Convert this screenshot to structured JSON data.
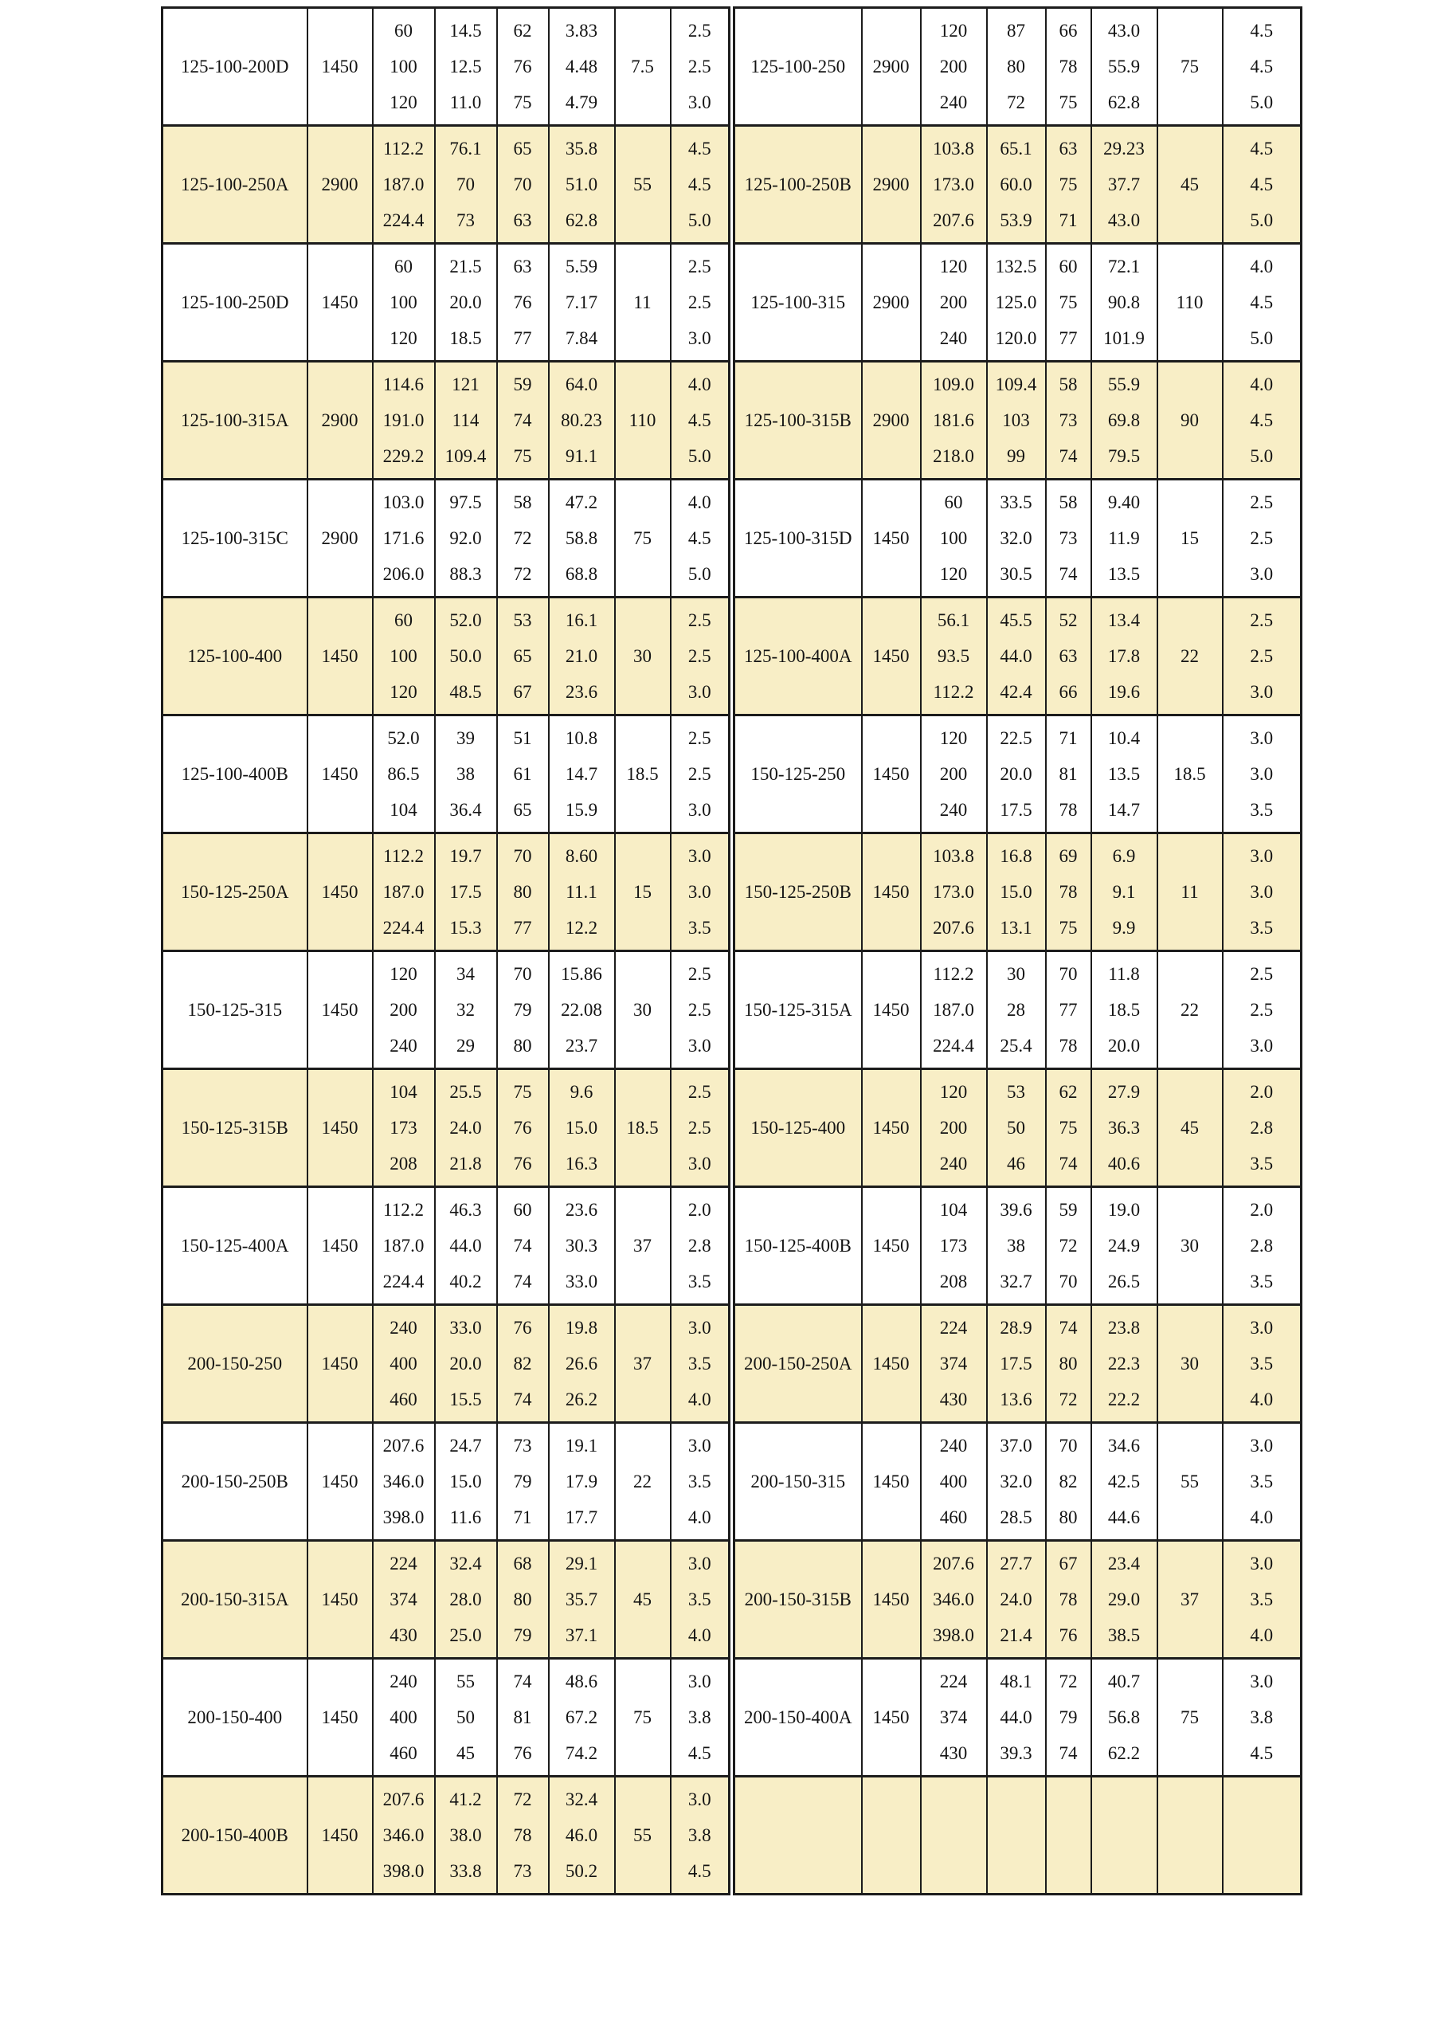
{
  "page": {
    "background": "#ffffff"
  },
  "table": {
    "shaded_row_bg": "#f8eec6",
    "border_color": "#1c1c1c",
    "text_color": "#141414",
    "left_rows": [
      {
        "model": "125-100-200D",
        "speed": "1450",
        "flow": [
          "60",
          "100",
          "120"
        ],
        "head": [
          "14.5",
          "12.5",
          "11.0"
        ],
        "eff": [
          "62",
          "76",
          "75"
        ],
        "power": [
          "3.83",
          "4.48",
          "4.79"
        ],
        "motor": "7.5",
        "npsh": [
          "2.5",
          "2.5",
          "3.0"
        ]
      },
      {
        "model": "125-100-250A",
        "speed": "2900",
        "flow": [
          "112.2",
          "187.0",
          "224.4"
        ],
        "head": [
          "76.1",
          "70",
          "73"
        ],
        "eff": [
          "65",
          "70",
          "63"
        ],
        "power": [
          "35.8",
          "51.0",
          "62.8"
        ],
        "motor": "55",
        "npsh": [
          "4.5",
          "4.5",
          "5.0"
        ]
      },
      {
        "model": "125-100-250D",
        "speed": "1450",
        "flow": [
          "60",
          "100",
          "120"
        ],
        "head": [
          "21.5",
          "20.0",
          "18.5"
        ],
        "eff": [
          "63",
          "76",
          "77"
        ],
        "power": [
          "5.59",
          "7.17",
          "7.84"
        ],
        "motor": "11",
        "npsh": [
          "2.5",
          "2.5",
          "3.0"
        ]
      },
      {
        "model": "125-100-315A",
        "speed": "2900",
        "flow": [
          "114.6",
          "191.0",
          "229.2"
        ],
        "head": [
          "121",
          "114",
          "109.4"
        ],
        "eff": [
          "59",
          "74",
          "75"
        ],
        "power": [
          "64.0",
          "80.23",
          "91.1"
        ],
        "motor": "110",
        "npsh": [
          "4.0",
          "4.5",
          "5.0"
        ]
      },
      {
        "model": "125-100-315C",
        "speed": "2900",
        "flow": [
          "103.0",
          "171.6",
          "206.0"
        ],
        "head": [
          "97.5",
          "92.0",
          "88.3"
        ],
        "eff": [
          "58",
          "72",
          "72"
        ],
        "power": [
          "47.2",
          "58.8",
          "68.8"
        ],
        "motor": "75",
        "npsh": [
          "4.0",
          "4.5",
          "5.0"
        ]
      },
      {
        "model": "125-100-400",
        "speed": "1450",
        "flow": [
          "60",
          "100",
          "120"
        ],
        "head": [
          "52.0",
          "50.0",
          "48.5"
        ],
        "eff": [
          "53",
          "65",
          "67"
        ],
        "power": [
          "16.1",
          "21.0",
          "23.6"
        ],
        "motor": "30",
        "npsh": [
          "2.5",
          "2.5",
          "3.0"
        ]
      },
      {
        "model": "125-100-400B",
        "speed": "1450",
        "flow": [
          "52.0",
          "86.5",
          "104"
        ],
        "head": [
          "39",
          "38",
          "36.4"
        ],
        "eff": [
          "51",
          "61",
          "65"
        ],
        "power": [
          "10.8",
          "14.7",
          "15.9"
        ],
        "motor": "18.5",
        "npsh": [
          "2.5",
          "2.5",
          "3.0"
        ]
      },
      {
        "model": "150-125-250A",
        "speed": "1450",
        "flow": [
          "112.2",
          "187.0",
          "224.4"
        ],
        "head": [
          "19.7",
          "17.5",
          "15.3"
        ],
        "eff": [
          "70",
          "80",
          "77"
        ],
        "power": [
          "8.60",
          "11.1",
          "12.2"
        ],
        "motor": "15",
        "npsh": [
          "3.0",
          "3.0",
          "3.5"
        ]
      },
      {
        "model": "150-125-315",
        "speed": "1450",
        "flow": [
          "120",
          "200",
          "240"
        ],
        "head": [
          "34",
          "32",
          "29"
        ],
        "eff": [
          "70",
          "79",
          "80"
        ],
        "power": [
          "15.86",
          "22.08",
          "23.7"
        ],
        "motor": "30",
        "npsh": [
          "2.5",
          "2.5",
          "3.0"
        ]
      },
      {
        "model": "150-125-315B",
        "speed": "1450",
        "flow": [
          "104",
          "173",
          "208"
        ],
        "head": [
          "25.5",
          "24.0",
          "21.8"
        ],
        "eff": [
          "75",
          "76",
          "76"
        ],
        "power": [
          "9.6",
          "15.0",
          "16.3"
        ],
        "motor": "18.5",
        "npsh": [
          "2.5",
          "2.5",
          "3.0"
        ]
      },
      {
        "model": "150-125-400A",
        "speed": "1450",
        "flow": [
          "112.2",
          "187.0",
          "224.4"
        ],
        "head": [
          "46.3",
          "44.0",
          "40.2"
        ],
        "eff": [
          "60",
          "74",
          "74"
        ],
        "power": [
          "23.6",
          "30.3",
          "33.0"
        ],
        "motor": "37",
        "npsh": [
          "2.0",
          "2.8",
          "3.5"
        ]
      },
      {
        "model": "200-150-250",
        "speed": "1450",
        "flow": [
          "240",
          "400",
          "460"
        ],
        "head": [
          "33.0",
          "20.0",
          "15.5"
        ],
        "eff": [
          "76",
          "82",
          "74"
        ],
        "power": [
          "19.8",
          "26.6",
          "26.2"
        ],
        "motor": "37",
        "npsh": [
          "3.0",
          "3.5",
          "4.0"
        ]
      },
      {
        "model": "200-150-250B",
        "speed": "1450",
        "flow": [
          "207.6",
          "346.0",
          "398.0"
        ],
        "head": [
          "24.7",
          "15.0",
          "11.6"
        ],
        "eff": [
          "73",
          "79",
          "71"
        ],
        "power": [
          "19.1",
          "17.9",
          "17.7"
        ],
        "motor": "22",
        "npsh": [
          "3.0",
          "3.5",
          "4.0"
        ]
      },
      {
        "model": "200-150-315A",
        "speed": "1450",
        "flow": [
          "224",
          "374",
          "430"
        ],
        "head": [
          "32.4",
          "28.0",
          "25.0"
        ],
        "eff": [
          "68",
          "80",
          "79"
        ],
        "power": [
          "29.1",
          "35.7",
          "37.1"
        ],
        "motor": "45",
        "npsh": [
          "3.0",
          "3.5",
          "4.0"
        ]
      },
      {
        "model": "200-150-400",
        "speed": "1450",
        "flow": [
          "240",
          "400",
          "460"
        ],
        "head": [
          "55",
          "50",
          "45"
        ],
        "eff": [
          "74",
          "81",
          "76"
        ],
        "power": [
          "48.6",
          "67.2",
          "74.2"
        ],
        "motor": "75",
        "npsh": [
          "3.0",
          "3.8",
          "4.5"
        ]
      },
      {
        "model": "200-150-400B",
        "speed": "1450",
        "flow": [
          "207.6",
          "346.0",
          "398.0"
        ],
        "head": [
          "41.2",
          "38.0",
          "33.8"
        ],
        "eff": [
          "72",
          "78",
          "73"
        ],
        "power": [
          "32.4",
          "46.0",
          "50.2"
        ],
        "motor": "55",
        "npsh": [
          "3.0",
          "3.8",
          "4.5"
        ]
      }
    ],
    "right_rows": [
      {
        "model": "125-100-250",
        "speed": "2900",
        "flow": [
          "120",
          "200",
          "240"
        ],
        "head": [
          "87",
          "80",
          "72"
        ],
        "eff": [
          "66",
          "78",
          "75"
        ],
        "power": [
          "43.0",
          "55.9",
          "62.8"
        ],
        "motor": "75",
        "npsh": [
          "4.5",
          "4.5",
          "5.0"
        ]
      },
      {
        "model": "125-100-250B",
        "speed": "2900",
        "flow": [
          "103.8",
          "173.0",
          "207.6"
        ],
        "head": [
          "65.1",
          "60.0",
          "53.9"
        ],
        "eff": [
          "63",
          "75",
          "71"
        ],
        "power": [
          "29.23",
          "37.7",
          "43.0"
        ],
        "motor": "45",
        "npsh": [
          "4.5",
          "4.5",
          "5.0"
        ]
      },
      {
        "model": "125-100-315",
        "speed": "2900",
        "flow": [
          "120",
          "200",
          "240"
        ],
        "head": [
          "132.5",
          "125.0",
          "120.0"
        ],
        "eff": [
          "60",
          "75",
          "77"
        ],
        "power": [
          "72.1",
          "90.8",
          "101.9"
        ],
        "motor": "110",
        "npsh": [
          "4.0",
          "4.5",
          "5.0"
        ]
      },
      {
        "model": "125-100-315B",
        "speed": "2900",
        "flow": [
          "109.0",
          "181.6",
          "218.0"
        ],
        "head": [
          "109.4",
          "103",
          "99"
        ],
        "eff": [
          "58",
          "73",
          "74"
        ],
        "power": [
          "55.9",
          "69.8",
          "79.5"
        ],
        "motor": "90",
        "npsh": [
          "4.0",
          "4.5",
          "5.0"
        ]
      },
      {
        "model": "125-100-315D",
        "speed": "1450",
        "flow": [
          "60",
          "100",
          "120"
        ],
        "head": [
          "33.5",
          "32.0",
          "30.5"
        ],
        "eff": [
          "58",
          "73",
          "74"
        ],
        "power": [
          "9.40",
          "11.9",
          "13.5"
        ],
        "motor": "15",
        "npsh": [
          "2.5",
          "2.5",
          "3.0"
        ]
      },
      {
        "model": "125-100-400A",
        "speed": "1450",
        "flow": [
          "56.1",
          "93.5",
          "112.2"
        ],
        "head": [
          "45.5",
          "44.0",
          "42.4"
        ],
        "eff": [
          "52",
          "63",
          "66"
        ],
        "power": [
          "13.4",
          "17.8",
          "19.6"
        ],
        "motor": "22",
        "npsh": [
          "2.5",
          "2.5",
          "3.0"
        ]
      },
      {
        "model": "150-125-250",
        "speed": "1450",
        "flow": [
          "120",
          "200",
          "240"
        ],
        "head": [
          "22.5",
          "20.0",
          "17.5"
        ],
        "eff": [
          "71",
          "81",
          "78"
        ],
        "power": [
          "10.4",
          "13.5",
          "14.7"
        ],
        "motor": "18.5",
        "npsh": [
          "3.0",
          "3.0",
          "3.5"
        ]
      },
      {
        "model": "150-125-250B",
        "speed": "1450",
        "flow": [
          "103.8",
          "173.0",
          "207.6"
        ],
        "head": [
          "16.8",
          "15.0",
          "13.1"
        ],
        "eff": [
          "69",
          "78",
          "75"
        ],
        "power": [
          "6.9",
          "9.1",
          "9.9"
        ],
        "motor": "11",
        "npsh": [
          "3.0",
          "3.0",
          "3.5"
        ]
      },
      {
        "model": "150-125-315A",
        "speed": "1450",
        "flow": [
          "112.2",
          "187.0",
          "224.4"
        ],
        "head": [
          "30",
          "28",
          "25.4"
        ],
        "eff": [
          "70",
          "77",
          "78"
        ],
        "power": [
          "11.8",
          "18.5",
          "20.0"
        ],
        "motor": "22",
        "npsh": [
          "2.5",
          "2.5",
          "3.0"
        ]
      },
      {
        "model": "150-125-400",
        "speed": "1450",
        "flow": [
          "120",
          "200",
          "240"
        ],
        "head": [
          "53",
          "50",
          "46"
        ],
        "eff": [
          "62",
          "75",
          "74"
        ],
        "power": [
          "27.9",
          "36.3",
          "40.6"
        ],
        "motor": "45",
        "npsh": [
          "2.0",
          "2.8",
          "3.5"
        ]
      },
      {
        "model": "150-125-400B",
        "speed": "1450",
        "flow": [
          "104",
          "173",
          "208"
        ],
        "head": [
          "39.6",
          "38",
          "32.7"
        ],
        "eff": [
          "59",
          "72",
          "70"
        ],
        "power": [
          "19.0",
          "24.9",
          "26.5"
        ],
        "motor": "30",
        "npsh": [
          "2.0",
          "2.8",
          "3.5"
        ]
      },
      {
        "model": "200-150-250A",
        "speed": "1450",
        "flow": [
          "224",
          "374",
          "430"
        ],
        "head": [
          "28.9",
          "17.5",
          "13.6"
        ],
        "eff": [
          "74",
          "80",
          "72"
        ],
        "power": [
          "23.8",
          "22.3",
          "22.2"
        ],
        "motor": "30",
        "npsh": [
          "3.0",
          "3.5",
          "4.0"
        ]
      },
      {
        "model": "200-150-315",
        "speed": "1450",
        "flow": [
          "240",
          "400",
          "460"
        ],
        "head": [
          "37.0",
          "32.0",
          "28.5"
        ],
        "eff": [
          "70",
          "82",
          "80"
        ],
        "power": [
          "34.6",
          "42.5",
          "44.6"
        ],
        "motor": "55",
        "npsh": [
          "3.0",
          "3.5",
          "4.0"
        ]
      },
      {
        "model": "200-150-315B",
        "speed": "1450",
        "flow": [
          "207.6",
          "346.0",
          "398.0"
        ],
        "head": [
          "27.7",
          "24.0",
          "21.4"
        ],
        "eff": [
          "67",
          "78",
          "76"
        ],
        "power": [
          "23.4",
          "29.0",
          "38.5"
        ],
        "motor": "37",
        "npsh": [
          "3.0",
          "3.5",
          "4.0"
        ]
      },
      {
        "model": "200-150-400A",
        "speed": "1450",
        "flow": [
          "224",
          "374",
          "430"
        ],
        "head": [
          "48.1",
          "44.0",
          "39.3"
        ],
        "eff": [
          "72",
          "79",
          "74"
        ],
        "power": [
          "40.7",
          "56.8",
          "62.2"
        ],
        "motor": "75",
        "npsh": [
          "3.0",
          "3.8",
          "4.5"
        ]
      },
      {
        "model": "",
        "speed": "",
        "flow": [
          "",
          "",
          ""
        ],
        "head": [
          "",
          "",
          ""
        ],
        "eff": [
          "",
          "",
          ""
        ],
        "power": [
          "",
          "",
          ""
        ],
        "motor": "",
        "npsh": [
          "",
          "",
          ""
        ]
      }
    ]
  }
}
